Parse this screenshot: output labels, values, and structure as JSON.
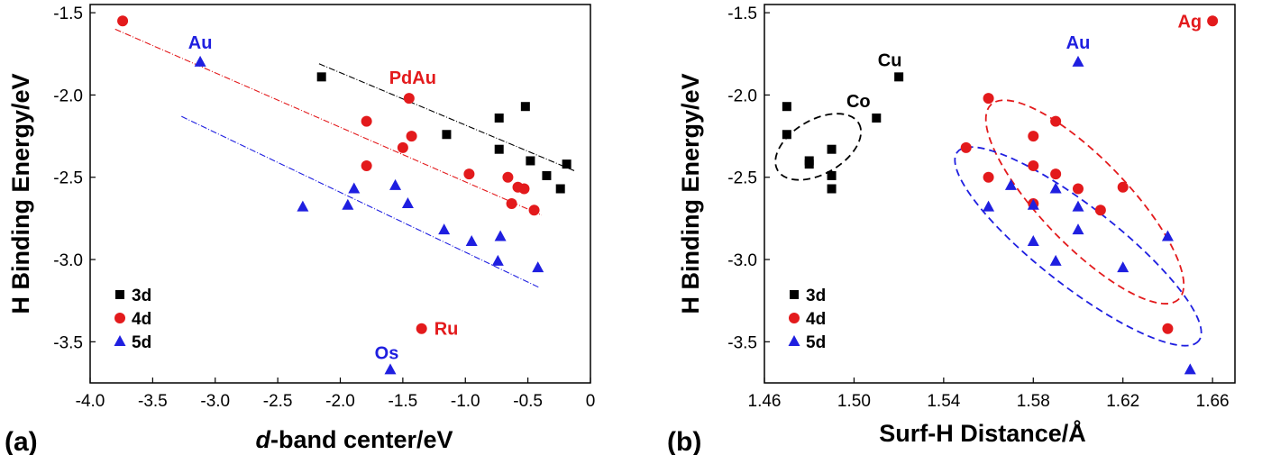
{
  "chart_data": [
    {
      "panel": "(a)",
      "type": "scatter",
      "xlabel_italic": "d",
      "xlabel_rest": "-band center/eV",
      "ylabel": "H Binding Energy/eV",
      "xlim": [
        -4.0,
        0
      ],
      "ylim": [
        -3.75,
        -1.45
      ],
      "xticks": [
        -4.0,
        -3.5,
        -3.0,
        -2.5,
        -2.0,
        -1.5,
        -1.0,
        -0.5,
        0
      ],
      "xtick_labels": [
        "-4.0",
        "-3.5",
        "-3.0",
        "-2.5",
        "-2.0",
        "-1.5",
        "-1.0",
        "-0.5",
        "0"
      ],
      "yticks": [
        -1.5,
        -2.0,
        -2.5,
        -3.0,
        -3.5
      ],
      "ytick_labels": [
        "-1.5",
        "-2.0",
        "-2.5",
        "-3.0",
        "-3.5"
      ],
      "legend_position": "bottom-left",
      "series": [
        {
          "name": "3d",
          "marker": "square",
          "color": "#000000",
          "x": [
            -2.15,
            -0.73,
            -0.52,
            -1.15,
            -0.73,
            -0.48,
            -0.35,
            -0.19,
            -0.24
          ],
          "y": [
            -1.89,
            -2.14,
            -2.07,
            -2.24,
            -2.33,
            -2.4,
            -2.49,
            -2.42,
            -2.57
          ]
        },
        {
          "name": "4d",
          "marker": "circle",
          "color": "#e31a1c",
          "x": [
            -3.74,
            -1.45,
            -1.79,
            -1.43,
            -1.5,
            -1.79,
            -0.97,
            -0.66,
            -0.58,
            -0.53,
            -0.63,
            -0.45,
            -1.35
          ],
          "y": [
            -1.55,
            -2.02,
            -2.16,
            -2.25,
            -2.32,
            -2.43,
            -2.48,
            -2.5,
            -2.56,
            -2.57,
            -2.66,
            -2.7,
            -3.42
          ]
        },
        {
          "name": "5d",
          "marker": "triangle",
          "color": "#1f1fe0",
          "x": [
            -3.12,
            -2.3,
            -1.94,
            -1.89,
            -1.56,
            -1.46,
            -1.17,
            -0.95,
            -0.72,
            -0.74,
            -0.42,
            -1.6
          ],
          "y": [
            -1.8,
            -2.68,
            -2.67,
            -2.57,
            -2.55,
            -2.66,
            -2.82,
            -2.89,
            -2.86,
            -3.01,
            -3.05,
            -3.67
          ]
        }
      ],
      "fit_lines": [
        {
          "color": "#000000",
          "x": [
            -2.17,
            -0.13
          ],
          "y": [
            -1.81,
            -2.46
          ]
        },
        {
          "color": "#e31a1c",
          "x": [
            -3.8,
            -0.39
          ],
          "y": [
            -1.6,
            -2.73
          ]
        },
        {
          "color": "#1f1fe0",
          "x": [
            -3.27,
            -0.41
          ],
          "y": [
            -2.13,
            -3.17
          ]
        }
      ],
      "annotations": [
        {
          "text": "Au",
          "color": "#1f1fe0",
          "x": -3.12,
          "y": -1.8
        },
        {
          "text": "PdAu",
          "color": "#e31a1c",
          "x": -1.45,
          "y": -2.02
        },
        {
          "text": "Ru",
          "color": "#e31a1c",
          "x": -1.35,
          "y": -3.42
        },
        {
          "text": "Os",
          "color": "#1f1fe0",
          "x": -1.6,
          "y": -3.67
        }
      ]
    },
    {
      "panel": "(b)",
      "type": "scatter",
      "xlabel": "Surf-H Distance/Å",
      "ylabel": "H Binding Energy/eV",
      "xlim": [
        1.46,
        1.67
      ],
      "ylim": [
        -3.75,
        -1.45
      ],
      "xticks": [
        1.46,
        1.5,
        1.54,
        1.58,
        1.62,
        1.66
      ],
      "xtick_labels": [
        "1.46",
        "1.50",
        "1.54",
        "1.58",
        "1.62",
        "1.66"
      ],
      "yticks": [
        -1.5,
        -2.0,
        -2.5,
        -3.0,
        -3.5
      ],
      "ytick_labels": [
        "-1.5",
        "-2.0",
        "-2.5",
        "-3.0",
        "-3.5"
      ],
      "legend_position": "bottom-left",
      "series": [
        {
          "name": "3d",
          "marker": "square",
          "color": "#000000",
          "x": [
            1.52,
            1.51,
            1.47,
            1.47,
            1.48,
            1.48,
            1.49,
            1.49,
            1.49
          ],
          "y": [
            -1.89,
            -2.14,
            -2.07,
            -2.24,
            -2.4,
            -2.42,
            -2.33,
            -2.49,
            -2.57
          ]
        },
        {
          "name": "4d",
          "marker": "circle",
          "color": "#e31a1c",
          "x": [
            1.66,
            1.56,
            1.59,
            1.58,
            1.55,
            1.58,
            1.59,
            1.56,
            1.6,
            1.62,
            1.58,
            1.61,
            1.64
          ],
          "y": [
            -1.55,
            -2.02,
            -2.16,
            -2.25,
            -2.32,
            -2.43,
            -2.48,
            -2.5,
            -2.57,
            -2.56,
            -2.66,
            -2.7,
            -3.42
          ]
        },
        {
          "name": "5d",
          "marker": "triangle",
          "color": "#1f1fe0",
          "x": [
            1.6,
            1.57,
            1.59,
            1.56,
            1.58,
            1.6,
            1.6,
            1.58,
            1.64,
            1.59,
            1.62,
            1.65
          ],
          "y": [
            -1.8,
            -2.55,
            -2.57,
            -2.68,
            -2.67,
            -2.68,
            -2.82,
            -2.89,
            -2.86,
            -3.01,
            -3.05,
            -3.67
          ]
        }
      ],
      "ellipses": [
        {
          "color": "#000000",
          "cx": 1.484,
          "cy": -2.315,
          "rx_deg": -30
        },
        {
          "color": "#e31a1c",
          "cx": 1.603,
          "cy": -2.65,
          "rx_deg": 46
        },
        {
          "color": "#1f1fe0",
          "cx": 1.6,
          "cy": -2.92,
          "rx_deg": 38
        }
      ],
      "annotations": [
        {
          "text": "Cu",
          "color": "#000000",
          "x": 1.52,
          "y": -1.89
        },
        {
          "text": "Co",
          "color": "#000000",
          "x": 1.51,
          "y": -2.14
        },
        {
          "text": "Au",
          "color": "#1f1fe0",
          "x": 1.6,
          "y": -1.8
        },
        {
          "text": "Ag",
          "color": "#e31a1c",
          "x": 1.66,
          "y": -1.55
        }
      ]
    }
  ]
}
